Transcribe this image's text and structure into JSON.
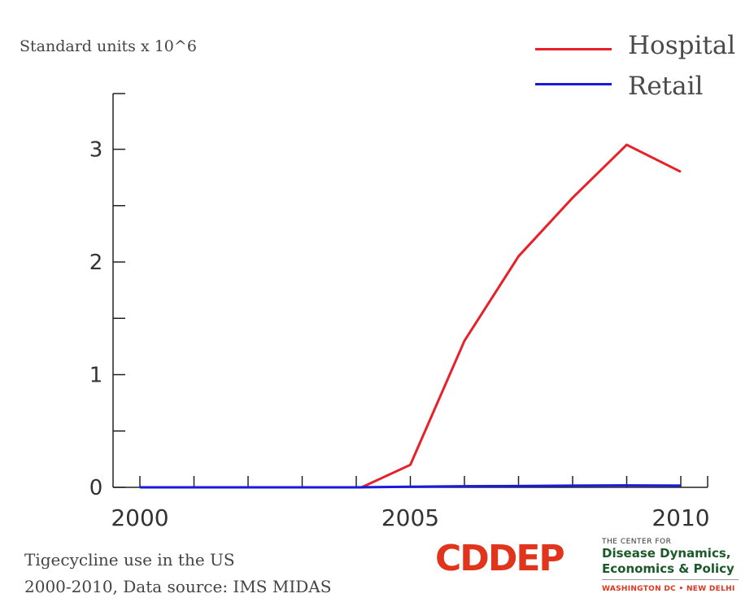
{
  "chart_data": {
    "type": "line",
    "title": "",
    "ylabel": "Standard units x 10^6",
    "xlabel": "",
    "x": [
      2000,
      2001,
      2002,
      2003,
      2004,
      2005,
      2006,
      2007,
      2008,
      2009,
      2010
    ],
    "xlim": [
      2000,
      2010
    ],
    "ylim": [
      0,
      3.5
    ],
    "x_ticks": [
      2000,
      2005,
      2010
    ],
    "y_ticks": [
      0,
      1,
      2,
      3
    ],
    "x_tick_labels": [
      "2000",
      "2005",
      "2010"
    ],
    "y_tick_labels": [
      "0",
      "1",
      "2",
      "3"
    ],
    "grid": false,
    "legend_position": "top-right",
    "series": [
      {
        "name": "Hospital",
        "color": "#e8202a",
        "x": [
          2000,
          2001,
          2002,
          2003,
          2004,
          2004.1,
          2005,
          2006,
          2007,
          2008,
          2009,
          2010
        ],
        "values": [
          0,
          0,
          0,
          0,
          0,
          0,
          0.2,
          1.3,
          2.05,
          2.57,
          3.04,
          2.8
        ]
      },
      {
        "name": "Retail",
        "color": "#1a1adb",
        "x": [
          2000,
          2001,
          2002,
          2003,
          2004,
          2005,
          2006,
          2007,
          2008,
          2009,
          2010
        ],
        "values": [
          0,
          0,
          0,
          0,
          0,
          0.005,
          0.01,
          0.012,
          0.015,
          0.017,
          0.015
        ]
      }
    ]
  },
  "caption": {
    "line1": "Tigecycline use in the US",
    "line2": "2000-2010, Data source: IMS MIDAS"
  },
  "logo": {
    "wordmark": "CDDEP",
    "line1": "THE CENTER FOR",
    "line2": "Disease Dynamics,",
    "line3": "Economics & Policy",
    "line4": "WASHINGTON DC • NEW DELHI",
    "colors": [
      "#e0341d",
      "#1a5a2a"
    ]
  }
}
